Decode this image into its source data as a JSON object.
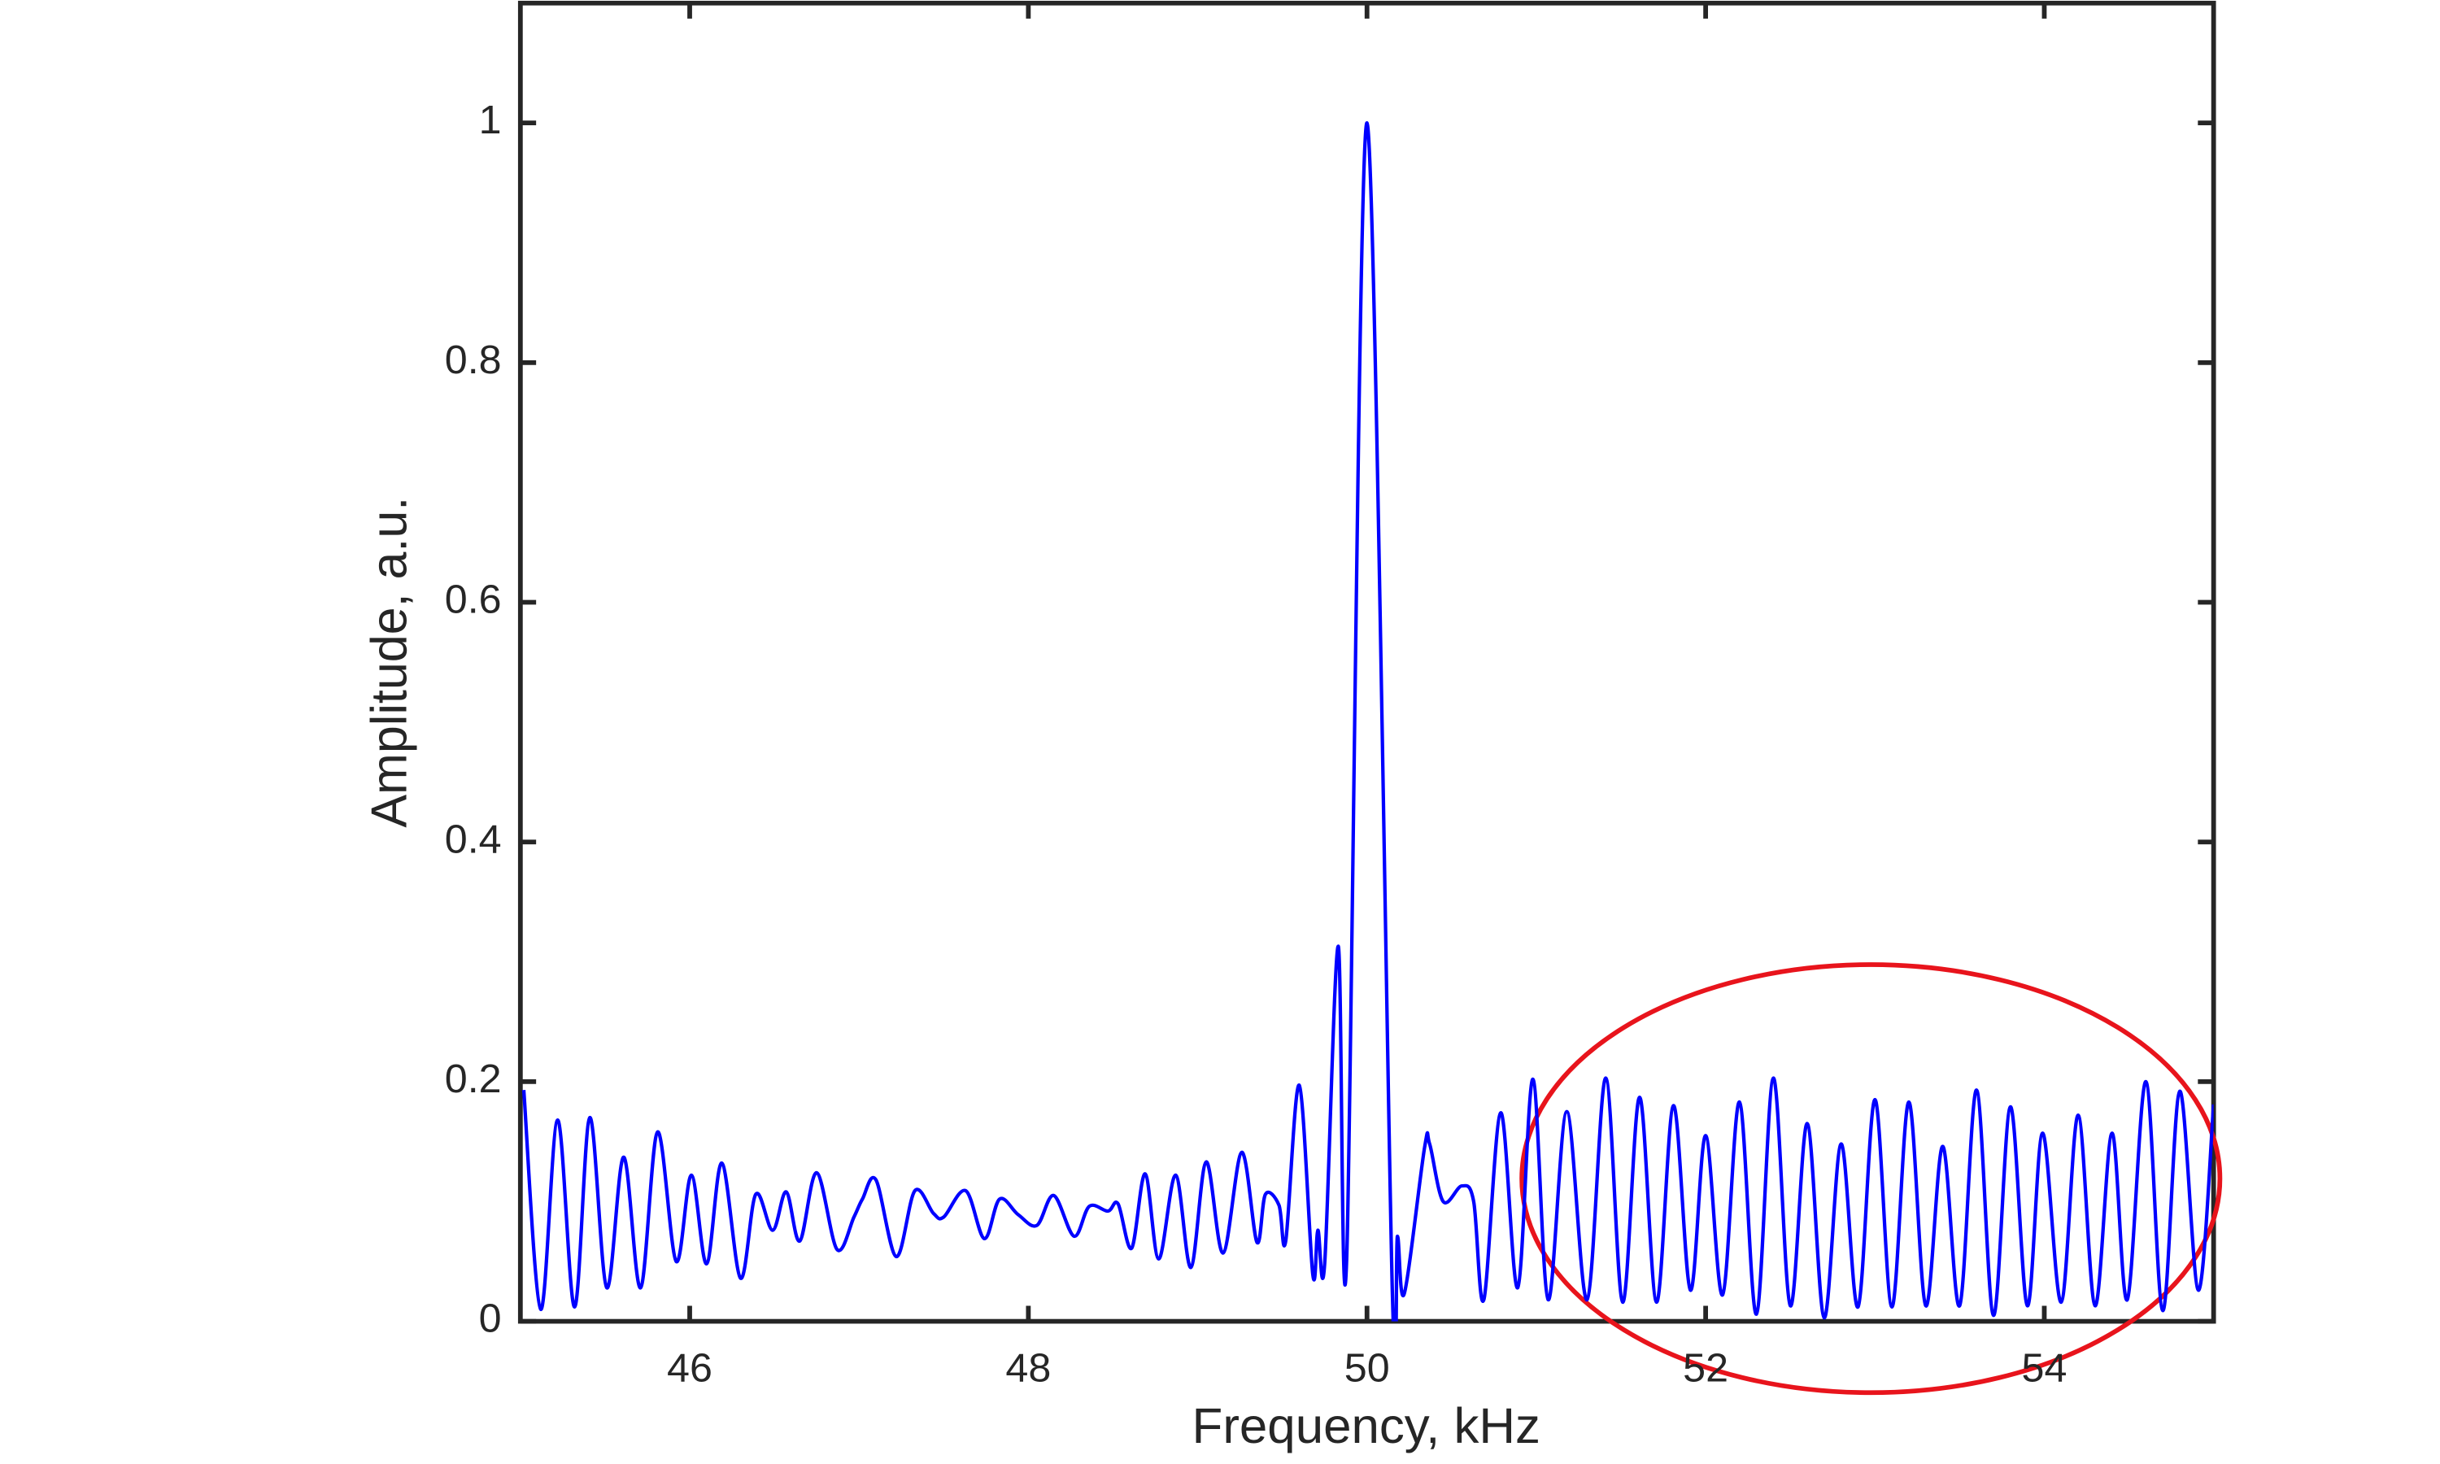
{
  "chart_data": {
    "type": "line",
    "x_label": "Frequency, kHz",
    "y_label": "Amplitude, a.u.",
    "xlim": [
      45,
      55
    ],
    "ylim": [
      0,
      1.1
    ],
    "xticks": [
      46,
      48,
      50,
      52,
      54
    ],
    "yticks": [
      0,
      0.2,
      0.4,
      0.6,
      0.8,
      1
    ],
    "grid": false,
    "series": [
      {
        "color": "#0000ff",
        "x": [
          45.02,
          45.12,
          45.22,
          45.32,
          45.41,
          45.51,
          45.61,
          45.71,
          45.81,
          45.92,
          46.01,
          46.1,
          46.19,
          46.3,
          46.39,
          46.49,
          46.57,
          46.65,
          46.75,
          46.87,
          46.97,
          47.02,
          47.1,
          47.22,
          47.33,
          47.44,
          47.5,
          47.63,
          47.74,
          47.83,
          47.94,
          48.05,
          48.15,
          48.27,
          48.36,
          48.47,
          48.53,
          48.61,
          48.69,
          48.77,
          48.87,
          48.96,
          49.05,
          49.15,
          49.26,
          49.35,
          49.4,
          49.48,
          49.52,
          49.6,
          49.68,
          49.71,
          49.75,
          49.83,
          49.88,
          50.0,
          50.15,
          50.18,
          50.22,
          50.34,
          50.37,
          50.45,
          50.56,
          50.63,
          50.69,
          50.79,
          50.89,
          50.98,
          51.07,
          51.18,
          51.3,
          51.41,
          51.51,
          51.61,
          51.71,
          51.81,
          51.91,
          52.0,
          52.1,
          52.2,
          52.3,
          52.4,
          52.5,
          52.6,
          52.7,
          52.8,
          52.9,
          53.0,
          53.1,
          53.2,
          53.3,
          53.4,
          53.5,
          53.6,
          53.7,
          53.8,
          53.9,
          53.99,
          54.1,
          54.2,
          54.3,
          54.4,
          54.49,
          54.6,
          54.7,
          54.8,
          54.91,
          55.0
        ],
        "values": [
          0.193,
          0.01,
          0.168,
          0.012,
          0.17,
          0.028,
          0.137,
          0.028,
          0.158,
          0.05,
          0.122,
          0.048,
          0.132,
          0.036,
          0.106,
          0.076,
          0.108,
          0.067,
          0.124,
          0.06,
          0.087,
          0.102,
          0.118,
          0.054,
          0.109,
          0.09,
          0.087,
          0.109,
          0.069,
          0.102,
          0.089,
          0.08,
          0.105,
          0.071,
          0.096,
          0.092,
          0.098,
          0.061,
          0.123,
          0.052,
          0.122,
          0.045,
          0.133,
          0.057,
          0.141,
          0.066,
          0.106,
          0.097,
          0.067,
          0.197,
          0.039,
          0.076,
          0.048,
          0.313,
          0.052,
          1.0,
          0.023,
          0.071,
          0.023,
          0.145,
          0.148,
          0.1,
          0.113,
          0.1,
          0.018,
          0.174,
          0.028,
          0.202,
          0.018,
          0.175,
          0.018,
          0.203,
          0.016,
          0.187,
          0.016,
          0.18,
          0.026,
          0.155,
          0.022,
          0.183,
          0.006,
          0.203,
          0.013,
          0.165,
          0.003,
          0.148,
          0.012,
          0.185,
          0.012,
          0.183,
          0.013,
          0.146,
          0.013,
          0.193,
          0.005,
          0.179,
          0.013,
          0.157,
          0.016,
          0.172,
          0.013,
          0.157,
          0.018,
          0.2,
          0.009,
          0.192,
          0.026,
          0.181
        ]
      }
    ]
  }
}
